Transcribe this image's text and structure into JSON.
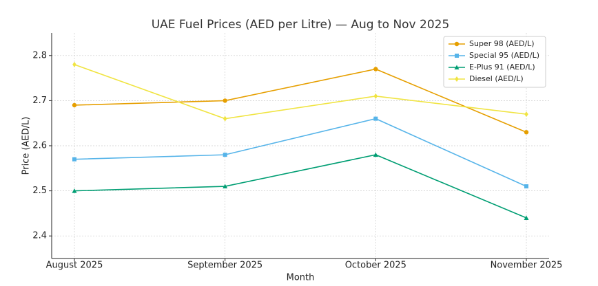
{
  "chart_data": {
    "type": "line",
    "title": "UAE Fuel Prices (AED per Litre) — Aug to Nov 2025",
    "x_label": "Month",
    "y_label": "Price (AED/L)",
    "categories": [
      "August 2025",
      "September 2025",
      "October 2025",
      "November 2025"
    ],
    "series": [
      {
        "name": "Super 98 (AED/L)",
        "color": "#e69f00",
        "marker": "circle",
        "values": [
          2.69,
          2.7,
          2.77,
          2.63
        ]
      },
      {
        "name": "Special 95 (AED/L)",
        "color": "#56b4e9",
        "marker": "square",
        "values": [
          2.57,
          2.58,
          2.66,
          2.51
        ]
      },
      {
        "name": "E-Plus 91 (AED/L)",
        "color": "#009e73",
        "marker": "triangle",
        "values": [
          2.5,
          2.51,
          2.58,
          2.44
        ]
      },
      {
        "name": "Diesel (AED/L)",
        "color": "#f0e442",
        "marker": "diamond",
        "values": [
          2.78,
          2.66,
          2.71,
          2.67
        ]
      }
    ],
    "ylim": [
      2.35,
      2.85
    ],
    "yticks": [
      2.4,
      2.5,
      2.6,
      2.7,
      2.8
    ],
    "grid": true,
    "legend": "upper right"
  }
}
